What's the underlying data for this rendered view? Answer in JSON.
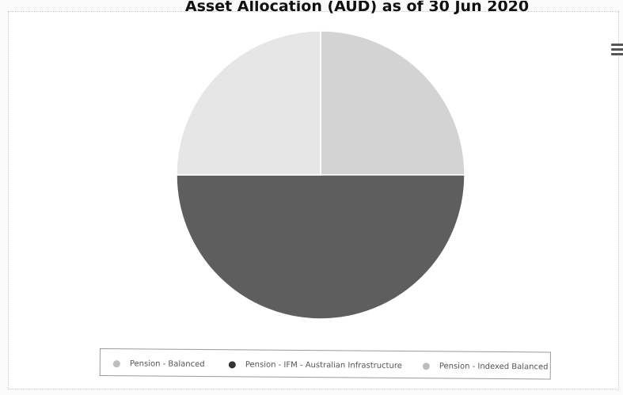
{
  "chart_data": {
    "type": "pie",
    "title": "Asset Allocation (AUD) as of 30 Jun 2020",
    "slices": [
      {
        "name": "Pension - Balanced",
        "value": 25,
        "color": "#d3d3d3"
      },
      {
        "name": "Pension - IFM - Australian Infrastructure",
        "value": 50,
        "color": "#5e5e5e"
      },
      {
        "name": "Pension - Indexed Balanced",
        "value": 25,
        "color": "#e6e6e6"
      }
    ],
    "legend_position": "bottom"
  },
  "toolbar": {
    "menu_icon": "hamburger-menu-icon"
  }
}
